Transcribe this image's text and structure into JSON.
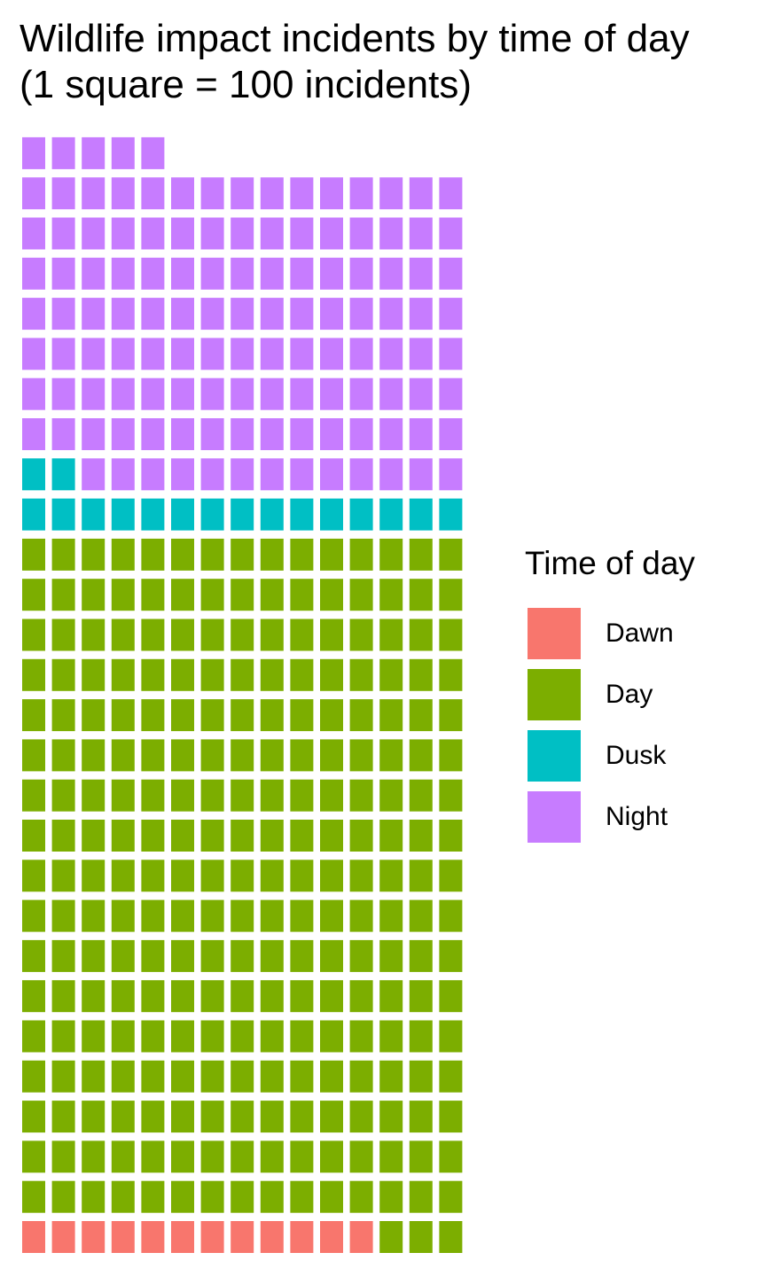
{
  "chart_data": {
    "type": "waffle",
    "title": "Wildlife impact incidents by time of day",
    "subtitle": "(1 square = 100 incidents)",
    "unit_per_square": 100,
    "columns": 15,
    "fill_order": "left-to-right, bottom-to-top",
    "legend": {
      "title": "Time of day",
      "placement": "right"
    },
    "series": [
      {
        "name": "Dawn",
        "squares": 12,
        "color": "#F8766D"
      },
      {
        "name": "Day",
        "squares": 258,
        "color": "#7CAE00"
      },
      {
        "name": "Dusk",
        "squares": 17,
        "color": "#00BFC4"
      },
      {
        "name": "Night",
        "squares": 123,
        "color": "#C77CFF"
      }
    ]
  }
}
